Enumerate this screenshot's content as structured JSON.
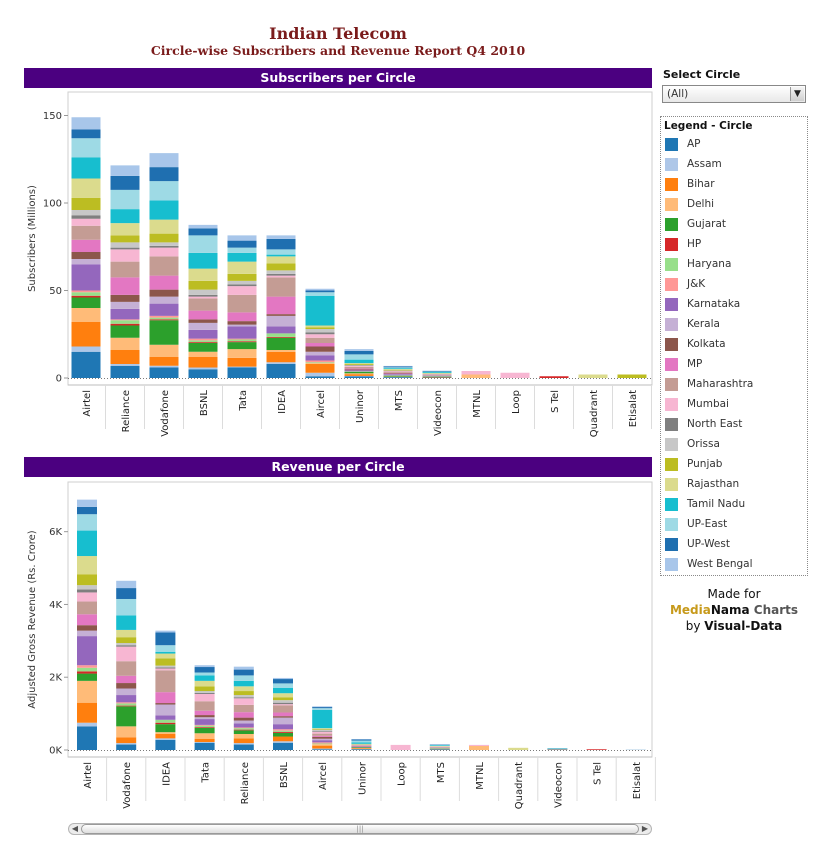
{
  "title": "Indian Telecom",
  "subtitle": "Circle-wise Subscribers and Revenue Report Q4 2010",
  "filter": {
    "title": "Select Circle",
    "selected": "(All)"
  },
  "legend": {
    "title": "Legend - Circle",
    "items": [
      {
        "label": "AP",
        "color": "#1f77b4"
      },
      {
        "label": "Assam",
        "color": "#aec7e8"
      },
      {
        "label": "Bihar",
        "color": "#ff7f0e"
      },
      {
        "label": "Delhi",
        "color": "#ffbb78"
      },
      {
        "label": "Gujarat",
        "color": "#2ca02c"
      },
      {
        "label": "HP",
        "color": "#d62728"
      },
      {
        "label": "Haryana",
        "color": "#98df8a"
      },
      {
        "label": "J&K",
        "color": "#ff9896"
      },
      {
        "label": "Karnataka",
        "color": "#9467bd"
      },
      {
        "label": "Kerala",
        "color": "#c5b0d5"
      },
      {
        "label": "Kolkata",
        "color": "#8c564b"
      },
      {
        "label": "MP",
        "color": "#e377c2"
      },
      {
        "label": "Maharashtra",
        "color": "#c49c94"
      },
      {
        "label": "Mumbai",
        "color": "#f7b6d2"
      },
      {
        "label": "North East",
        "color": "#7f7f7f"
      },
      {
        "label": "Orissa",
        "color": "#c7c7c7"
      },
      {
        "label": "Punjab",
        "color": "#bcbd22"
      },
      {
        "label": "Rajasthan",
        "color": "#dbdb8d"
      },
      {
        "label": "Tamil Nadu",
        "color": "#17becf"
      },
      {
        "label": "UP-East",
        "color": "#9edae5"
      },
      {
        "label": "UP-West",
        "color": "#1f6fb0"
      },
      {
        "label": "West Bengal",
        "color": "#a8c6ea"
      }
    ]
  },
  "credit": {
    "line1": "Made for",
    "brand_a": "Media",
    "brand_b": "Nama",
    "brand_c": " Charts",
    "line3_prefix": "by ",
    "brand_d": "Visual-Data"
  },
  "chart_data": [
    {
      "type": "bar",
      "stacked": true,
      "title": "Subscribers per Circle",
      "xlabel": "",
      "ylabel": "Subscribers (Millions)",
      "ylim": [
        0,
        160
      ],
      "yticks": [
        0,
        50,
        100,
        150
      ],
      "ytick_labels": [
        "0",
        "50",
        "100",
        "150"
      ],
      "categories": [
        "Airtel",
        "Reliance",
        "Vodafone",
        "BSNL",
        "Tata",
        "IDEA",
        "Aircel",
        "Uninor",
        "MTS",
        "Videocon",
        "MTNL",
        "Loop",
        "S Tel",
        "Quadrant",
        "Etisalat"
      ],
      "series": [
        {
          "name": "AP",
          "values": [
            15,
            7,
            6,
            5,
            6,
            8,
            1,
            1,
            0.5,
            0.3,
            0,
            0,
            0,
            0,
            0
          ]
        },
        {
          "name": "Assam",
          "values": [
            3,
            1,
            1,
            1,
            0.5,
            1,
            2,
            0.2,
            0,
            0,
            0,
            0,
            0,
            0,
            0
          ]
        },
        {
          "name": "Bihar",
          "values": [
            14,
            8,
            5,
            6,
            5,
            6,
            5,
            1,
            0,
            0.3,
            0,
            0,
            0,
            0,
            0
          ]
        },
        {
          "name": "Delhi",
          "values": [
            8,
            7,
            7,
            3,
            5,
            1,
            0.5,
            0.5,
            0.3,
            0,
            2,
            0,
            0,
            0,
            0
          ]
        },
        {
          "name": "Gujarat",
          "values": [
            6,
            7,
            14,
            5,
            4,
            7,
            0,
            0.8,
            0.5,
            0.2,
            0,
            0,
            0,
            0,
            0
          ]
        },
        {
          "name": "HP",
          "values": [
            1,
            1,
            0.5,
            0.5,
            0.5,
            0.5,
            0,
            0,
            0,
            0,
            0,
            0,
            1,
            0,
            0
          ]
        },
        {
          "name": "Haryana",
          "values": [
            2,
            2,
            1,
            1,
            1,
            2,
            0.5,
            0.3,
            0.2,
            0.2,
            0,
            0,
            0,
            0,
            0
          ]
        },
        {
          "name": "J&K",
          "values": [
            1,
            0.5,
            1,
            1,
            0.5,
            0,
            1,
            0,
            0,
            0,
            0,
            0,
            0,
            0,
            0
          ]
        },
        {
          "name": "Karnataka",
          "values": [
            15,
            6,
            7,
            5,
            7,
            4,
            3,
            0.6,
            0.5,
            0.2,
            0,
            0,
            0,
            0,
            0
          ]
        },
        {
          "name": "Kerala",
          "values": [
            3,
            4,
            4,
            4,
            1,
            6,
            2,
            0,
            0.3,
            0.2,
            0,
            0,
            0,
            0,
            0
          ]
        },
        {
          "name": "Kolkata",
          "values": [
            4,
            4,
            4,
            2,
            2,
            1,
            3,
            0.5,
            0.3,
            0.2,
            0,
            0,
            0,
            0,
            0
          ]
        },
        {
          "name": "MP",
          "values": [
            7,
            10,
            8,
            5,
            5,
            10,
            2,
            0.5,
            0.3,
            0.2,
            0,
            0,
            0,
            0,
            0
          ]
        },
        {
          "name": "Maharashtra",
          "values": [
            8,
            9,
            11,
            7,
            10,
            11,
            3,
            1,
            0.5,
            0.2,
            0,
            0,
            0,
            0,
            0
          ]
        },
        {
          "name": "Mumbai",
          "values": [
            4,
            7,
            5,
            1,
            5,
            1,
            2,
            0.5,
            0.5,
            0.2,
            2,
            3,
            0,
            0,
            0
          ]
        },
        {
          "name": "North East",
          "values": [
            2,
            1,
            1,
            1,
            1,
            1,
            1,
            0.3,
            0.2,
            0.1,
            0,
            0,
            0,
            0,
            0
          ]
        },
        {
          "name": "Orissa",
          "values": [
            3,
            3,
            2,
            3,
            2,
            2,
            2,
            0.3,
            0.2,
            0.2,
            0,
            0,
            0,
            0,
            0
          ]
        },
        {
          "name": "Punjab",
          "values": [
            7,
            4,
            5,
            5,
            4,
            4,
            1,
            0.5,
            0.3,
            0.2,
            0,
            0,
            0,
            0,
            2
          ]
        },
        {
          "name": "Rajasthan",
          "values": [
            11,
            7,
            8,
            7,
            7,
            4,
            1,
            0.5,
            0.5,
            0.2,
            0,
            0,
            0,
            2,
            0
          ]
        },
        {
          "name": "Tamil Nadu",
          "values": [
            12,
            8,
            11,
            9,
            5,
            1,
            17,
            2,
            0.5,
            0.5,
            0,
            0,
            0,
            0,
            0
          ]
        },
        {
          "name": "UP-East",
          "values": [
            11,
            11,
            11,
            10,
            3,
            3,
            2,
            3,
            0.5,
            0.3,
            0,
            0,
            0,
            0,
            0
          ]
        },
        {
          "name": "UP-West",
          "values": [
            5,
            8,
            8,
            4,
            4,
            6,
            1,
            2,
            0.5,
            0.3,
            0,
            0,
            0,
            0,
            0
          ]
        },
        {
          "name": "West Bengal",
          "values": [
            7,
            6,
            8,
            2,
            3,
            2,
            1,
            1,
            0.3,
            0.2,
            0,
            0,
            0,
            0,
            0
          ]
        }
      ]
    },
    {
      "type": "bar",
      "stacked": true,
      "title": "Revenue per Circle",
      "xlabel": "",
      "ylabel": "Adjusted Gross Revenue (Rs. Crore)",
      "ylim": [
        0,
        7200
      ],
      "yticks": [
        0,
        2000,
        4000,
        6000
      ],
      "ytick_labels": [
        "0K",
        "2K",
        "4K",
        "6K"
      ],
      "categories": [
        "Airtel",
        "Vodafone",
        "IDEA",
        "Tata",
        "Reliance",
        "BSNL",
        "Aircel",
        "Uninor",
        "Loop",
        "MTS",
        "MTNL",
        "Quadrant",
        "Videocon",
        "S Tel",
        "Etisalat"
      ],
      "series": [
        {
          "name": "AP",
          "values": [
            650,
            150,
            280,
            200,
            150,
            200,
            20,
            20,
            0,
            20,
            0,
            0,
            10,
            0,
            5
          ]
        },
        {
          "name": "Assam",
          "values": [
            100,
            40,
            40,
            20,
            40,
            40,
            20,
            5,
            0,
            0,
            0,
            0,
            0,
            0,
            0
          ]
        },
        {
          "name": "Bihar",
          "values": [
            550,
            160,
            120,
            90,
            130,
            130,
            80,
            20,
            0,
            5,
            0,
            0,
            5,
            0,
            0
          ]
        },
        {
          "name": "Delhi",
          "values": [
            600,
            300,
            50,
            150,
            120,
            0,
            40,
            10,
            0,
            10,
            110,
            0,
            0,
            0,
            0
          ]
        },
        {
          "name": "Gujarat",
          "values": [
            200,
            550,
            220,
            150,
            100,
            100,
            0,
            15,
            0,
            10,
            0,
            0,
            5,
            0,
            0
          ]
        },
        {
          "name": "HP",
          "values": [
            60,
            20,
            40,
            20,
            20,
            30,
            0,
            0,
            0,
            0,
            0,
            0,
            0,
            20,
            0
          ]
        },
        {
          "name": "Haryana",
          "values": [
            100,
            60,
            80,
            40,
            40,
            30,
            20,
            5,
            0,
            5,
            0,
            0,
            0,
            0,
            0
          ]
        },
        {
          "name": "J&K",
          "values": [
            70,
            30,
            0,
            20,
            20,
            40,
            30,
            0,
            0,
            0,
            0,
            0,
            0,
            0,
            0
          ]
        },
        {
          "name": "Karnataka",
          "values": [
            800,
            200,
            120,
            160,
            110,
            140,
            60,
            15,
            0,
            10,
            0,
            0,
            5,
            0,
            0
          ]
        },
        {
          "name": "Kerala",
          "values": [
            150,
            180,
            300,
            50,
            80,
            180,
            40,
            0,
            0,
            5,
            0,
            0,
            0,
            0,
            0
          ]
        },
        {
          "name": "Kolkata",
          "values": [
            150,
            150,
            40,
            60,
            80,
            40,
            50,
            10,
            0,
            5,
            0,
            0,
            0,
            0,
            0
          ]
        },
        {
          "name": "MP",
          "values": [
            300,
            200,
            300,
            120,
            150,
            100,
            30,
            10,
            0,
            5,
            0,
            0,
            0,
            0,
            0
          ]
        },
        {
          "name": "Maharashtra",
          "values": [
            350,
            400,
            600,
            260,
            200,
            200,
            60,
            20,
            0,
            10,
            0,
            0,
            5,
            0,
            0
          ]
        },
        {
          "name": "Mumbai",
          "values": [
            250,
            400,
            50,
            200,
            180,
            30,
            50,
            10,
            140,
            10,
            30,
            0,
            0,
            0,
            0
          ]
        },
        {
          "name": "North East",
          "values": [
            80,
            40,
            30,
            30,
            30,
            40,
            20,
            5,
            0,
            0,
            0,
            0,
            0,
            0,
            0
          ]
        },
        {
          "name": "Orissa",
          "values": [
            120,
            60,
            50,
            50,
            60,
            70,
            40,
            5,
            0,
            0,
            0,
            0,
            0,
            0,
            0
          ]
        },
        {
          "name": "Punjab",
          "values": [
            300,
            160,
            200,
            130,
            110,
            80,
            20,
            10,
            0,
            5,
            0,
            0,
            0,
            0,
            0
          ]
        },
        {
          "name": "Rajasthan",
          "values": [
            500,
            200,
            130,
            150,
            130,
            110,
            20,
            10,
            0,
            10,
            0,
            60,
            0,
            0,
            0
          ]
        },
        {
          "name": "Tamil Nadu",
          "values": [
            700,
            400,
            50,
            150,
            150,
            150,
            500,
            40,
            0,
            20,
            0,
            0,
            10,
            0,
            0
          ]
        },
        {
          "name": "UP-East",
          "values": [
            450,
            450,
            180,
            80,
            150,
            120,
            50,
            50,
            0,
            10,
            0,
            0,
            5,
            0,
            0
          ]
        },
        {
          "name": "UP-West",
          "values": [
            200,
            300,
            350,
            150,
            160,
            120,
            30,
            30,
            0,
            10,
            0,
            0,
            5,
            0,
            0
          ]
        },
        {
          "name": "West Bengal",
          "values": [
            200,
            200,
            50,
            50,
            80,
            30,
            20,
            10,
            0,
            5,
            0,
            0,
            0,
            0,
            0
          ]
        }
      ]
    }
  ]
}
